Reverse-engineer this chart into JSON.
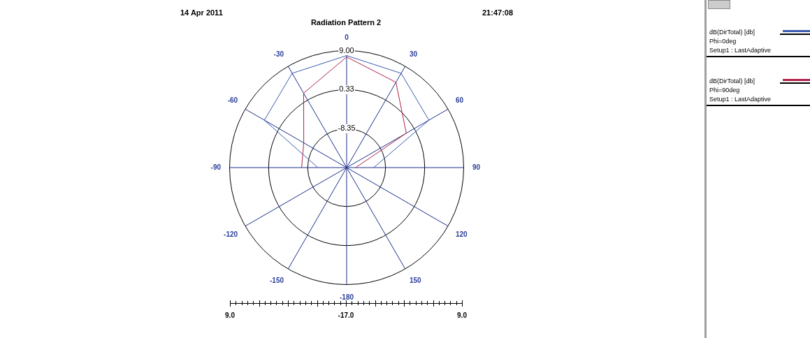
{
  "chart_data": {
    "type": "radar",
    "title": "Radiation Pattern 2",
    "annotations": [
      "14 Apr 2011",
      "21:47:08",
      "9.0",
      "-17.0",
      "9.0"
    ],
    "categories": [
      "0",
      "30",
      "60",
      "90",
      "120",
      "150",
      "-180",
      "-150",
      "-120",
      "-90",
      "-60",
      "-30"
    ],
    "series": [
      {
        "name": "dB(DirTotal) [db]\nPhi=0deg\nSetup1 : LastAdaptive",
        "color": "#3a5bb0",
        "values": [
          7.9,
          7.2,
          4.1,
          -11,
          null,
          null,
          null,
          null,
          null,
          -10.6,
          4.1,
          7.2
        ]
      },
      {
        "name": "dB(DirTotal) [db]\nPhi=90deg\nSetup1 : LastAdaptive",
        "color": "#b0204a",
        "values": [
          7.6,
          4.9,
          -1.7,
          -15,
          null,
          null,
          null,
          null,
          null,
          -7,
          -6,
          2.1
        ]
      }
    ],
    "ylim": [
      -17,
      9
    ],
    "yticks": [
      {
        "value": -8.35,
        "label": "-8.35"
      },
      {
        "value": 0.33,
        "label": "0.33"
      },
      {
        "value": 9,
        "label": "9.00"
      }
    ],
    "grid": true,
    "legend": "right"
  }
}
